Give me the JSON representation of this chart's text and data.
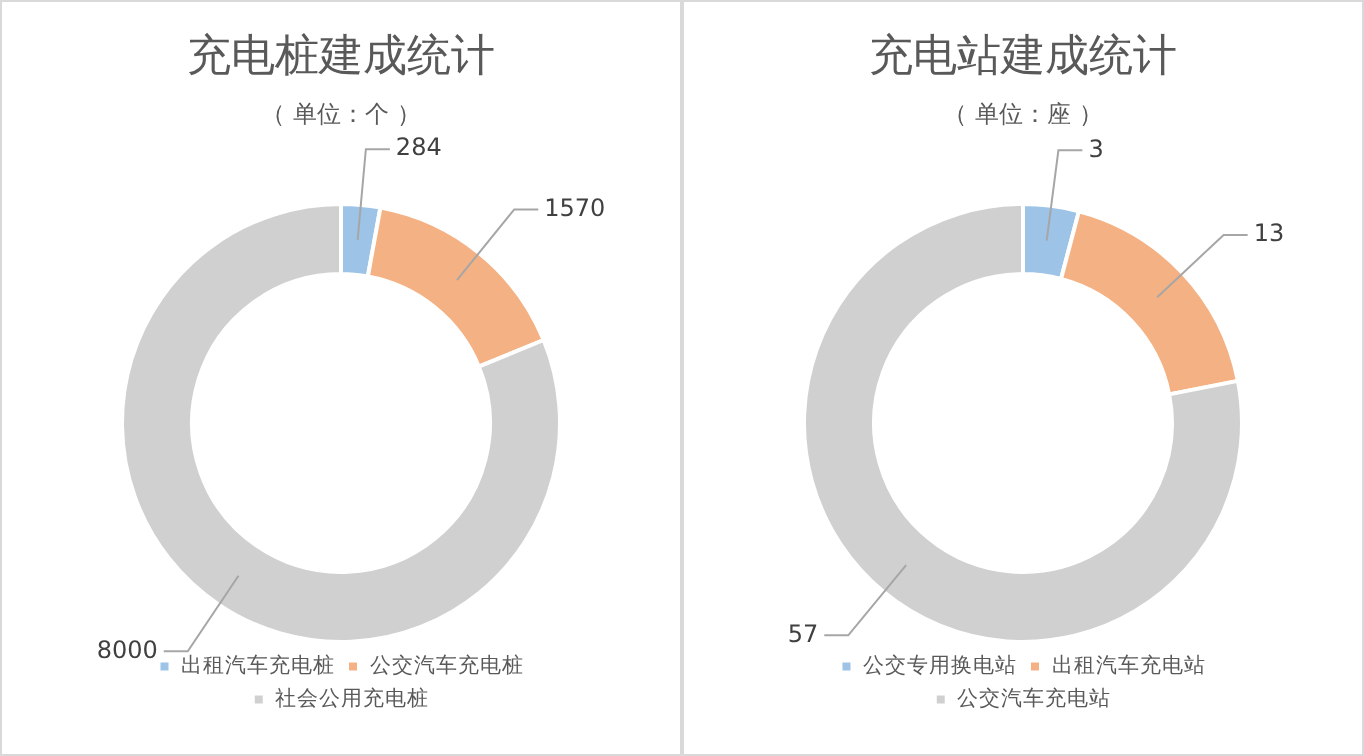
{
  "chart_data": [
    {
      "type": "donut",
      "title": "充电桩建成统计",
      "subtitle": "（ 单位：个 ）",
      "categories": [
        "出租汽车充电桩",
        "公交汽车充电桩",
        "社会公用充电桩"
      ],
      "values": [
        284,
        1570,
        8000
      ],
      "colors": [
        "#9dc3e6",
        "#f4b183",
        "#d0d0d0"
      ],
      "data_labels": true,
      "legend": "bottom"
    },
    {
      "type": "donut",
      "title": "充电站建成统计",
      "subtitle": "（ 单位：座 ）",
      "categories": [
        "公交专用换电站",
        "出租汽车充电站",
        "公交汽车充电站"
      ],
      "values": [
        3,
        13,
        57
      ],
      "colors": [
        "#9dc3e6",
        "#f4b183",
        "#d0d0d0"
      ],
      "data_labels": true,
      "legend": "bottom"
    }
  ]
}
